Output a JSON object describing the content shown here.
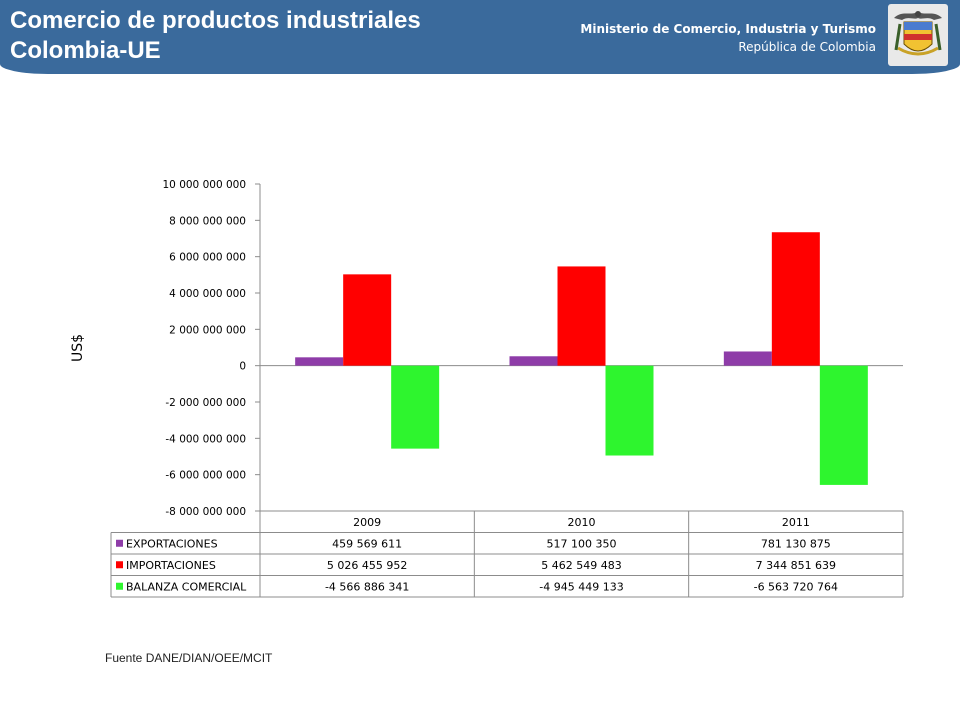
{
  "header": {
    "title_line1": "Comercio de productos industriales",
    "title_line2": "Colombia-UE",
    "ministry": "Ministerio de Comercio, Industria y Turismo",
    "republic": "República de Colombia"
  },
  "crest_icon": "coat-of-arms-icon",
  "source": "Fuente DANE/DIAN/OEE/MCIT",
  "colors": {
    "exportaciones": "#8e3ca8",
    "importaciones": "#ff0000",
    "balanza": "#2ef52e",
    "header": "#3a6a9c"
  },
  "chart_data": {
    "type": "bar",
    "title": "",
    "xlabel": "",
    "ylabel": "US$",
    "ylim": [
      -8000000000,
      10000000000
    ],
    "ytick_step": 2000000000,
    "yticks": [
      "10 000 000 000",
      "8 000 000 000",
      "6 000 000 000",
      "4 000 000 000",
      "2 000 000 000",
      "0",
      "-2 000 000 000",
      "-4 000 000 000",
      "-6 000 000 000",
      "-8 000 000 000"
    ],
    "categories": [
      "2009",
      "2010",
      "2011"
    ],
    "series": [
      {
        "name": "EXPORTACIONES",
        "values": [
          459569611,
          517100350,
          781130875
        ],
        "labels": [
          "459 569 611",
          "517 100 350",
          "781 130 875"
        ]
      },
      {
        "name": "IMPORTACIONES",
        "values": [
          5026455952,
          5462549483,
          7344851639
        ],
        "labels": [
          "5 026 455 952",
          "5 462 549 483",
          "7 344 851 639"
        ]
      },
      {
        "name": "BALANZA COMERCIAL",
        "values": [
          -4566886341,
          -4945449133,
          -6563720764
        ],
        "labels": [
          "-4 566 886 341",
          "-4 945 449 133",
          "-6 563 720 764"
        ]
      }
    ],
    "data_table": true,
    "grid": false
  }
}
